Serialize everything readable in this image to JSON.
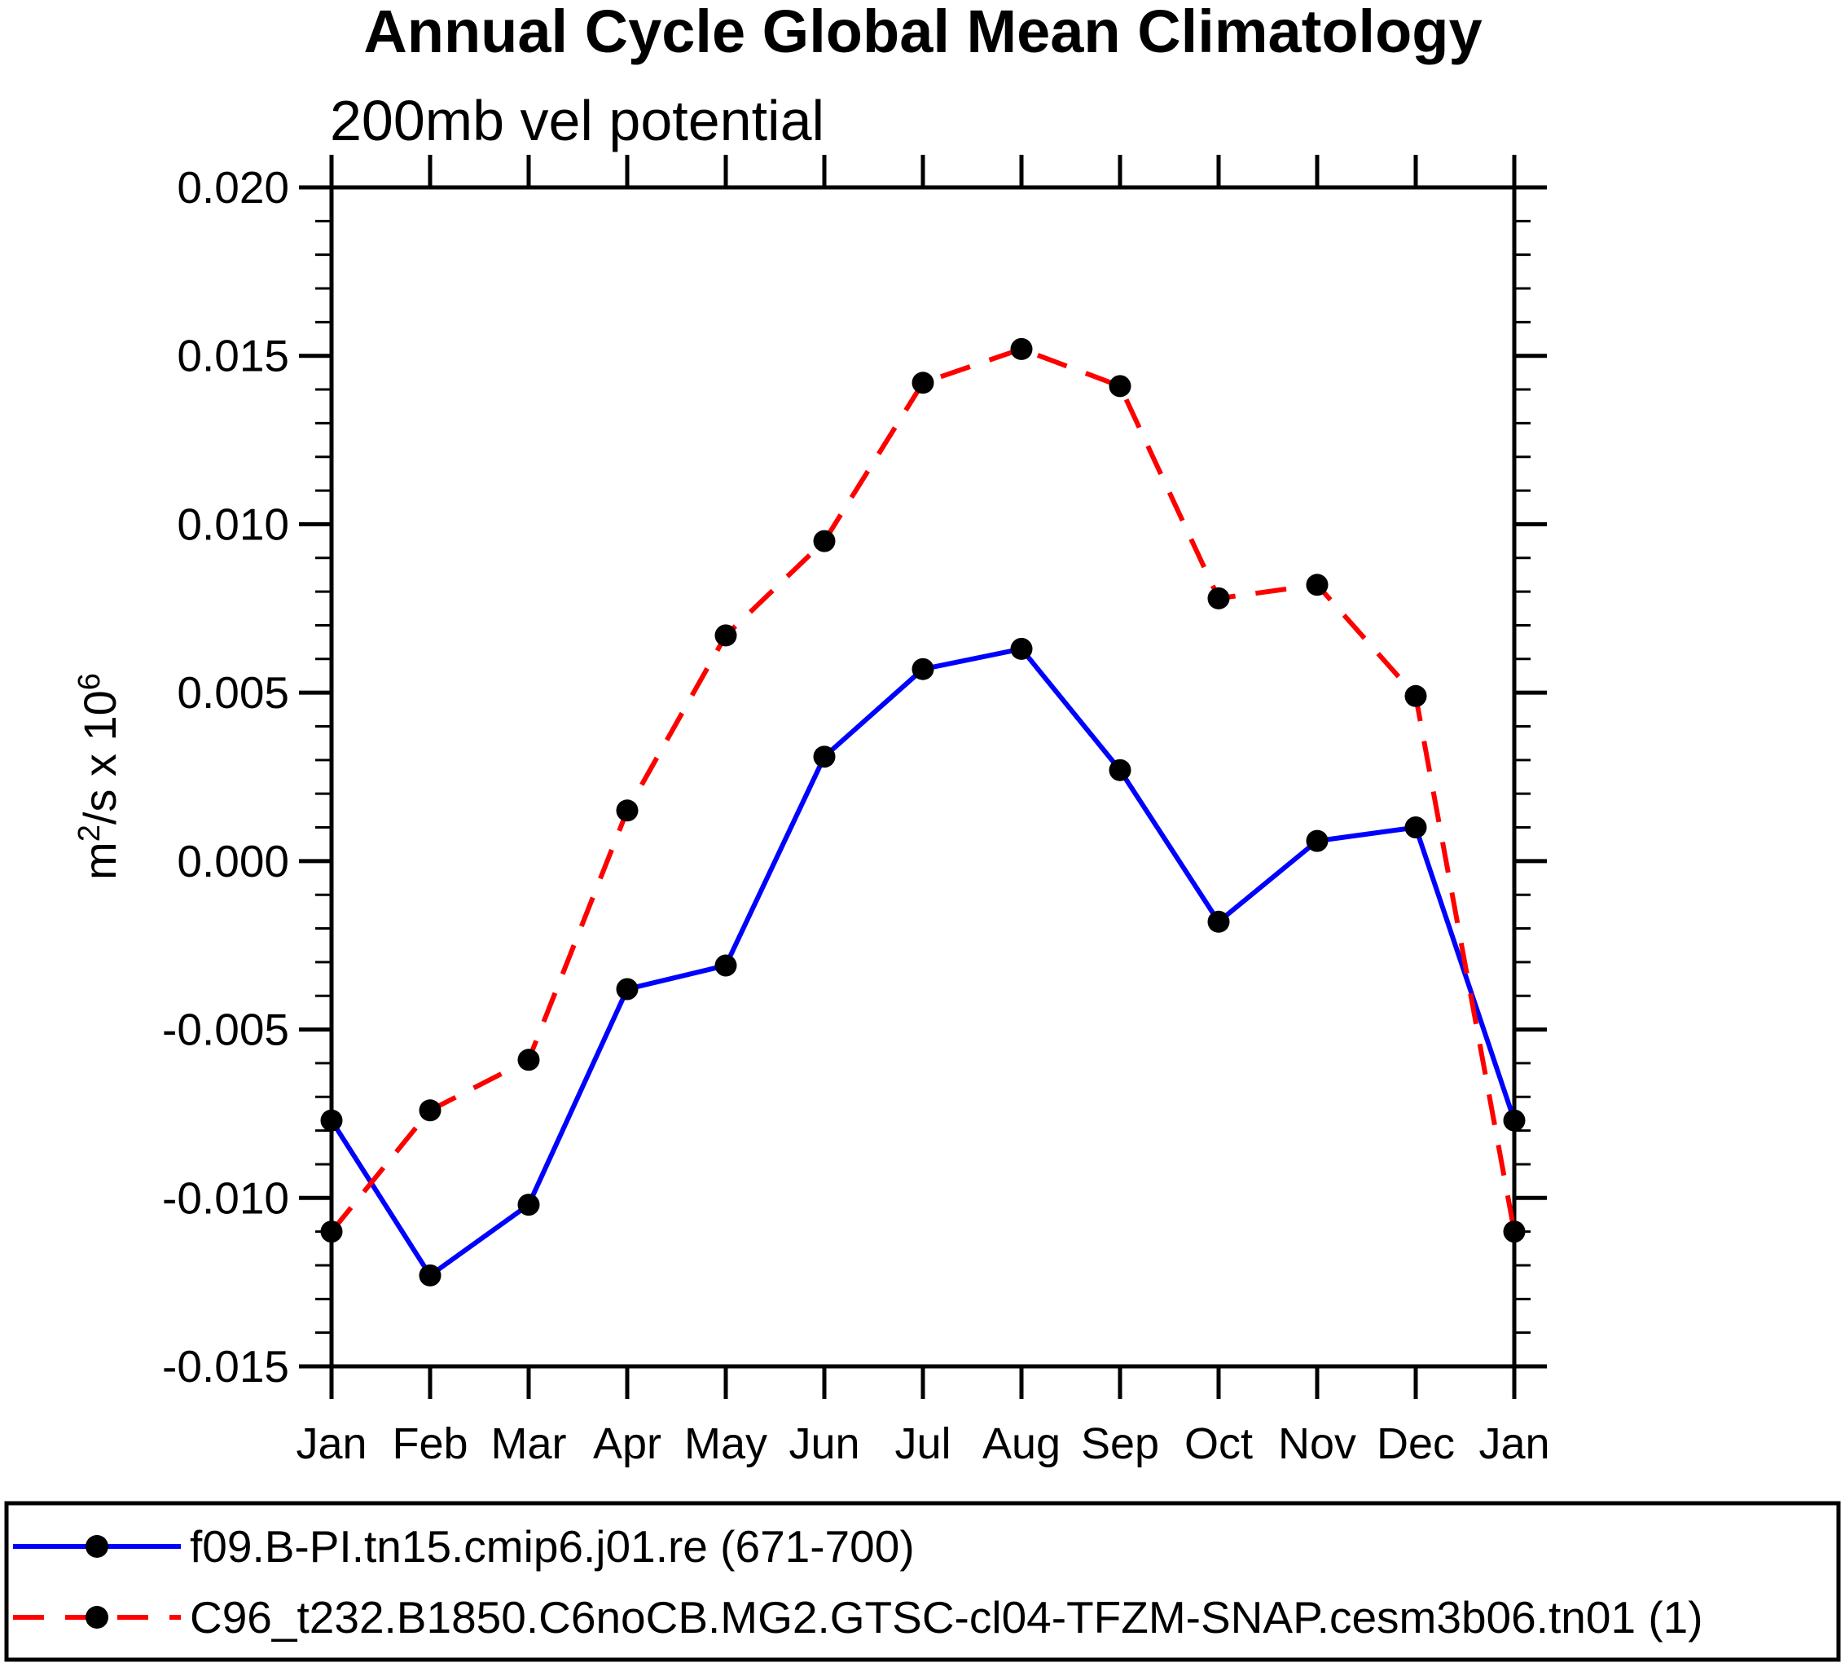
{
  "title": "Annual Cycle Global Mean Climatology",
  "subtitle": "200mb vel potential",
  "y_axis": {
    "label": "m^2/s x 10^6",
    "parts": [
      {
        "t": "m"
      },
      {
        "t": "2",
        "sup": true
      },
      {
        "t": "/s x 10"
      },
      {
        "t": "6",
        "sup": true
      }
    ]
  },
  "colors": {
    "series1": "#0000ff",
    "series2": "#ff0000",
    "marker": "#000000",
    "axis": "#000000"
  },
  "legend": {
    "entries": [
      {
        "label": "f09.B-PI.tn15.cmip6.j01.re (671-700)",
        "color": "#0000ff",
        "style": "solid",
        "marker": "black-dot"
      },
      {
        "label": "C96_t232.B1850.C6noCB.MG2.GTSC-cl04-TFZM-SNAP.cesm3b06.tn01 (1)",
        "color": "#ff0000",
        "style": "dashed",
        "marker": "black-dot"
      }
    ]
  },
  "chart_data": {
    "type": "line",
    "title": "Annual Cycle Global Mean Climatology",
    "subtitle": "200mb vel potential",
    "xlabel": "",
    "ylabel": "m^2/s x 10^6",
    "categories": [
      "Jan",
      "Feb",
      "Mar",
      "Apr",
      "May",
      "Jun",
      "Jul",
      "Aug",
      "Sep",
      "Oct",
      "Nov",
      "Dec",
      "Jan"
    ],
    "series": [
      {
        "name": "f09.B-PI.tn15.cmip6.j01.re (671-700)",
        "color": "#0000ff",
        "line_style": "solid",
        "marker": "black-dot",
        "values": [
          -0.0077,
          -0.0123,
          -0.0102,
          -0.0038,
          -0.0031,
          0.0031,
          0.0057,
          0.0063,
          0.0027,
          -0.0018,
          0.0006,
          0.001,
          -0.0077
        ]
      },
      {
        "name": "C96_t232.B1850.C6noCB.MG2.GTSC-cl04-TFZM-SNAP.cesm3b06.tn01 (1)",
        "color": "#ff0000",
        "line_style": "dashed",
        "marker": "black-dot",
        "values": [
          -0.011,
          -0.0074,
          -0.0059,
          0.0015,
          0.0067,
          0.0095,
          0.0142,
          0.0152,
          0.0141,
          0.0078,
          0.0082,
          0.0049,
          -0.011
        ]
      }
    ],
    "ylim": [
      -0.015,
      0.02
    ],
    "ytick_values": [
      0.02,
      0.015,
      0.01,
      0.005,
      0.0,
      -0.005,
      -0.01,
      -0.015
    ],
    "yminor_step": 0.001,
    "grid": false,
    "legend_position": "bottom"
  }
}
